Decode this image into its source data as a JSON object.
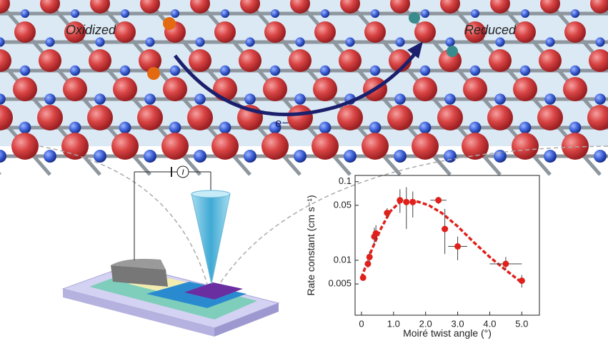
{
  "illustration": {
    "oxidized": "Oxidized",
    "reduced": "Reduced",
    "electron": "e−",
    "current": "I"
  },
  "chart_data": {
    "type": "scatter",
    "x_label": "Moiré twist angle (°)",
    "y_label": "Rate constant (cm s⁻¹)",
    "log_y": true,
    "color": "#e0201b",
    "x": [
      0.05,
      0.2,
      0.25,
      0.4,
      0.45,
      0.8,
      1.2,
      1.4,
      1.6,
      2.4,
      2.6,
      3.0,
      4.5,
      5.0
    ],
    "values": [
      0.006,
      0.009,
      0.011,
      0.02,
      0.022,
      0.04,
      0.058,
      0.055,
      0.055,
      0.058,
      0.025,
      0.015,
      0.009,
      0.0055
    ],
    "y_low": [
      0.0055,
      0.008,
      0.0095,
      0.016,
      0.018,
      0.035,
      0.04,
      0.025,
      0.035,
      0.052,
      0.012,
      0.01,
      0.0075,
      0.0045
    ],
    "y_high": [
      0.0065,
      0.0105,
      0.013,
      0.026,
      0.028,
      0.046,
      0.08,
      0.085,
      0.075,
      0.064,
      0.045,
      0.02,
      0.011,
      0.0065
    ],
    "x_err": [
      0,
      0.05,
      0.05,
      0.05,
      0.05,
      0.1,
      0.1,
      0.1,
      0.1,
      0.25,
      0.1,
      0.3,
      0.5,
      0.1
    ],
    "fit": {
      "color": "#e0201b",
      "x": [
        0,
        0.3,
        0.6,
        0.9,
        1.2,
        1.5,
        1.8,
        2.1,
        2.5,
        3.0,
        3.5,
        4.0,
        4.5,
        5.0
      ],
      "values": [
        0.006,
        0.013,
        0.025,
        0.042,
        0.055,
        0.058,
        0.055,
        0.05,
        0.04,
        0.027,
        0.017,
        0.011,
        0.0075,
        0.0052
      ]
    },
    "xlim": [
      -0.2,
      5.55
    ],
    "ylim": [
      0.002,
      0.12
    ],
    "xticks": [
      0,
      {
        "value": 1,
        "label": "1.0"
      },
      {
        "value": 2,
        "label": "2.0"
      },
      {
        "value": 3,
        "label": "3.0"
      },
      {
        "value": 4,
        "label": "4.0"
      },
      {
        "value": 5,
        "label": "5.0"
      }
    ],
    "yticks": [
      0.005,
      0.01,
      0.05,
      0.1
    ]
  }
}
